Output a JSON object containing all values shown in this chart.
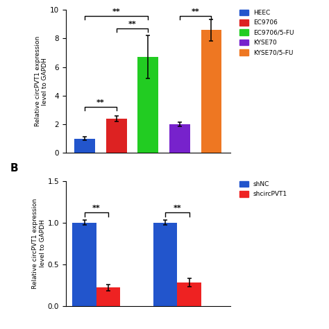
{
  "panel_a": {
    "categories": [
      "HEEC",
      "EC9706",
      "EC9706/5-FU",
      "KYSE70",
      "KYSE70/5-FU"
    ],
    "values": [
      1.0,
      2.4,
      6.7,
      2.0,
      8.6
    ],
    "errors": [
      0.12,
      0.18,
      1.5,
      0.15,
      0.75
    ],
    "colors": [
      "#2255CC",
      "#DD2222",
      "#22CC22",
      "#7722CC",
      "#EE7722"
    ],
    "ylabel": "Relative circPVT1 expression\nlevel to GAPDH",
    "ylim": [
      0,
      10
    ],
    "yticks": [
      0,
      2,
      4,
      6,
      8,
      10
    ],
    "legend_labels": [
      "HEEC",
      "EC9706",
      "EC9706/5-FU",
      "KYSE70",
      "KYSE70/5-FU"
    ]
  },
  "panel_b": {
    "categories": [
      "shNC",
      "shcircPVT1"
    ],
    "values": [
      [
        1.0,
        0.22
      ],
      [
        1.0,
        0.28
      ]
    ],
    "errors": [
      [
        0.03,
        0.04
      ],
      [
        0.03,
        0.05
      ]
    ],
    "colors": [
      "#2255CC",
      "#EE2222"
    ],
    "ylabel": "Relative circPVT1 expression\nlevel to GAPDH",
    "ylim": [
      0,
      1.5
    ],
    "yticks": [
      0.0,
      0.5,
      1.0,
      1.5
    ]
  }
}
